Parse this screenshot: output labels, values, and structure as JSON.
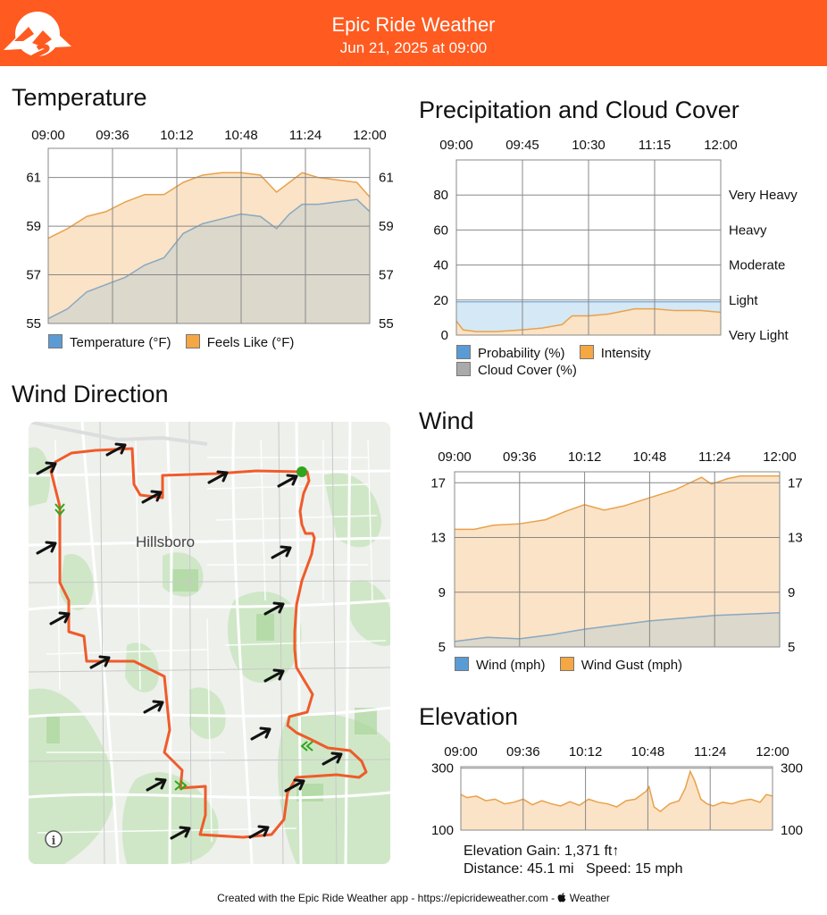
{
  "header": {
    "title": "Epic Ride Weather",
    "subtitle": "Jun 21, 2025 at 09:00",
    "color": "#ff5a1f"
  },
  "temperature": {
    "title": "Temperature",
    "legend": [
      {
        "label": "Temperature (°F)",
        "color": "#5b9bd5"
      },
      {
        "label": "Feels Like (°F)",
        "color": "#f4a742"
      }
    ]
  },
  "precipitation": {
    "title": "Precipitation and Cloud Cover",
    "legend_row1": [
      {
        "label": "Probability (%)",
        "color": "#5b9bd5"
      },
      {
        "label": "Intensity",
        "color": "#f4a742"
      }
    ],
    "legend_row2": [
      {
        "label": "Cloud Cover (%)",
        "color": "#aaaaaa"
      }
    ]
  },
  "wind_direction": {
    "title": "Wind Direction",
    "place_label": "Hillsboro",
    "info_icon": "info-icon"
  },
  "wind": {
    "title": "Wind",
    "legend": [
      {
        "label": "Wind (mph)",
        "color": "#5b9bd5"
      },
      {
        "label": "Wind Gust (mph)",
        "color": "#f4a742"
      }
    ]
  },
  "elevation": {
    "title": "Elevation",
    "gain": "Elevation Gain: 1,371 ft↑",
    "distance": "Distance: 45.1 mi",
    "speed": "Speed: 15 mph"
  },
  "footer": {
    "text": "Created with the Epic Ride Weather app - https://epicrideweather.com - ",
    "weather": " Weather",
    "apple_icon": "apple-icon"
  },
  "chart_data": [
    {
      "type": "area",
      "name": "temperature",
      "x": [
        "09:00",
        "09:36",
        "10:12",
        "10:48",
        "11:24",
        "12:00"
      ],
      "ylim": [
        55,
        62.2
      ],
      "yticks": [
        55,
        57,
        59,
        61
      ],
      "series": [
        {
          "name": "Feels Like (°F)",
          "color": "#f4a742",
          "x": [
            0,
            0.3,
            0.6,
            0.9,
            1.2,
            1.5,
            1.8,
            2.1,
            2.4,
            2.7,
            3.0,
            3.3,
            3.55,
            3.75,
            3.95,
            4.2,
            4.5,
            4.8,
            5.0
          ],
          "values": [
            58.5,
            58.9,
            59.4,
            59.6,
            60.0,
            60.3,
            60.3,
            60.8,
            61.1,
            61.2,
            61.2,
            61.1,
            60.4,
            60.8,
            61.2,
            61.0,
            60.9,
            60.8,
            60.2
          ]
        },
        {
          "name": "Temperature (°F)",
          "color": "#5b9bd5",
          "x": [
            0,
            0.3,
            0.6,
            0.9,
            1.2,
            1.5,
            1.8,
            2.1,
            2.4,
            2.7,
            3.0,
            3.3,
            3.55,
            3.75,
            3.95,
            4.2,
            4.5,
            4.8,
            5.0
          ],
          "values": [
            55.2,
            55.6,
            56.3,
            56.6,
            56.9,
            57.4,
            57.7,
            58.7,
            59.1,
            59.3,
            59.5,
            59.4,
            58.9,
            59.5,
            59.9,
            59.9,
            60.0,
            60.1,
            59.6
          ]
        }
      ]
    },
    {
      "type": "area",
      "name": "precipitation_and_cloud_cover",
      "x": [
        "09:00",
        "09:45",
        "10:30",
        "11:15",
        "12:00"
      ],
      "ylim": [
        0,
        100
      ],
      "yticks": [
        0,
        20,
        40,
        60,
        80
      ],
      "right_labels": [
        "Very Light",
        "Light",
        "Moderate",
        "Heavy",
        "Very Heavy"
      ],
      "series": [
        {
          "name": "Probability (%)",
          "color": "#5b9bd5",
          "x": [
            0,
            4
          ],
          "values": [
            19,
            19
          ]
        },
        {
          "name": "Intensity",
          "color": "#f4a742",
          "x": [
            0,
            0.1,
            0.3,
            0.6,
            1.0,
            1.3,
            1.6,
            1.75,
            2.0,
            2.3,
            2.7,
            3.0,
            3.3,
            3.7,
            4.0
          ],
          "values": [
            8,
            3,
            2,
            2,
            3,
            4,
            6,
            11,
            11,
            12,
            15,
            15,
            14,
            14,
            13
          ]
        },
        {
          "name": "Cloud Cover (%)",
          "color": "#aaaaaa",
          "x": [
            0,
            4
          ],
          "values": [
            0,
            0
          ]
        }
      ]
    },
    {
      "type": "area",
      "name": "wind",
      "x": [
        "09:00",
        "09:36",
        "10:12",
        "10:48",
        "11:24",
        "12:00"
      ],
      "ylim": [
        5,
        17.8
      ],
      "yticks": [
        5,
        9,
        13,
        17
      ],
      "series": [
        {
          "name": "Wind Gust (mph)",
          "color": "#f4a742",
          "x": [
            0,
            0.3,
            0.6,
            1.0,
            1.4,
            1.7,
            2.0,
            2.3,
            2.6,
            3.0,
            3.4,
            3.8,
            3.95,
            4.2,
            4.4,
            4.7,
            5.0
          ],
          "values": [
            13.6,
            13.6,
            13.9,
            14.0,
            14.3,
            14.9,
            15.4,
            15.0,
            15.3,
            15.9,
            16.5,
            17.4,
            16.9,
            17.3,
            17.5,
            17.5,
            17.5
          ]
        },
        {
          "name": "Wind (mph)",
          "color": "#5b9bd5",
          "x": [
            0,
            0.5,
            1.0,
            1.5,
            2.0,
            2.5,
            3.0,
            3.5,
            4.0,
            4.5,
            5.0
          ],
          "values": [
            5.4,
            5.7,
            5.6,
            5.9,
            6.3,
            6.6,
            6.9,
            7.1,
            7.3,
            7.4,
            7.5
          ]
        }
      ]
    },
    {
      "type": "area",
      "name": "elevation",
      "x": [
        "09:00",
        "09:36",
        "10:12",
        "10:48",
        "11:24",
        "12:00"
      ],
      "ylim": [
        100,
        305
      ],
      "yticks": [
        100,
        300
      ],
      "series": [
        {
          "name": "Elevation",
          "color": "#f4a742",
          "x": [
            0,
            0.1,
            0.25,
            0.4,
            0.55,
            0.7,
            0.85,
            1.0,
            1.15,
            1.3,
            1.45,
            1.6,
            1.75,
            1.9,
            2.05,
            2.2,
            2.35,
            2.5,
            2.65,
            2.8,
            2.9,
            2.97,
            3.02,
            3.1,
            3.2,
            3.35,
            3.5,
            3.6,
            3.68,
            3.75,
            3.85,
            3.95,
            4.05,
            4.2,
            4.35,
            4.5,
            4.65,
            4.8,
            4.9,
            5.0
          ],
          "values": [
            215,
            205,
            210,
            195,
            200,
            185,
            190,
            200,
            182,
            195,
            185,
            178,
            192,
            180,
            200,
            190,
            185,
            175,
            195,
            200,
            215,
            225,
            240,
            175,
            160,
            185,
            195,
            235,
            290,
            260,
            200,
            185,
            178,
            190,
            185,
            195,
            200,
            190,
            215,
            210
          ]
        }
      ]
    }
  ]
}
